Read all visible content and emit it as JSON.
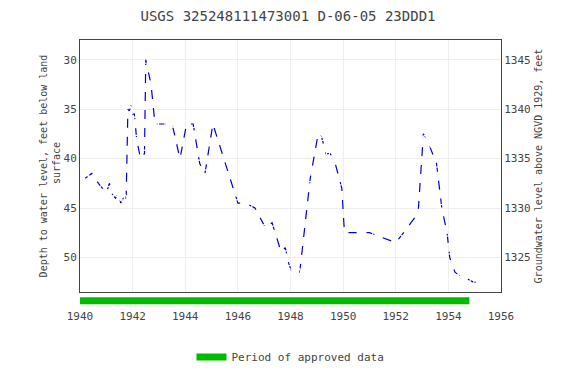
{
  "chart_data": {
    "type": "line",
    "title": "USGS 325248111473001 D-06-05 23DDD1",
    "ylabel": "Depth to water level, feet below land\n surface",
    "y2label": "Groundwater level above NGVD 1929, feet",
    "x": [
      1940.2,
      1940.45,
      1940.7,
      1941.0,
      1941.12,
      1941.2,
      1941.35,
      1941.45,
      1941.55,
      1941.65,
      1941.75,
      1941.82,
      1941.88,
      1941.95,
      1942.0,
      1942.07,
      1942.15,
      1942.3,
      1942.45,
      1942.5,
      1942.7,
      1942.85,
      1943.1,
      1943.5,
      1943.8,
      1944.05,
      1944.3,
      1944.55,
      1944.75,
      1945.05,
      1946.0,
      1946.3,
      1946.65,
      1947.05,
      1947.3,
      1947.65,
      1947.8,
      1947.92,
      1948.05,
      1948.15,
      1948.25,
      1948.35,
      1948.75,
      1949.05,
      1949.15,
      1949.25,
      1949.35,
      1949.5,
      1949.65,
      1949.95,
      1950.05,
      1951.0,
      1952.0,
      1952.3,
      1952.85,
      1953.05,
      1953.15,
      1953.25,
      1953.55,
      1953.75,
      1953.95,
      1954.05,
      1954.25,
      1954.5,
      1954.6,
      1954.95,
      1955.1
    ],
    "values": [
      42.0,
      41.5,
      42.5,
      43.5,
      42.5,
      43.5,
      44.0,
      43.5,
      44.5,
      44.0,
      44.5,
      35.0,
      35.2,
      34.5,
      35.5,
      35.5,
      38.0,
      40.0,
      39.5,
      30.0,
      32.5,
      36.5,
      36.5,
      36.5,
      40.0,
      36.5,
      36.5,
      40.5,
      41.5,
      36.5,
      44.5,
      44.5,
      45.0,
      47.0,
      46.5,
      49.5,
      49.0,
      50.5,
      51.5,
      51.5,
      51.5,
      51.5,
      42.0,
      37.5,
      37.5,
      38.5,
      39.5,
      39.5,
      40.0,
      43.0,
      47.5,
      47.5,
      48.5,
      47.5,
      45.5,
      37.5,
      38.0,
      38.5,
      40.5,
      45.0,
      47.5,
      50.0,
      51.5,
      52.0,
      52.0,
      52.5,
      52.5
    ],
    "color": "#0000cc",
    "marker": "hollow",
    "line_style": "dashed",
    "approved_period": {
      "name": "Period of approved data",
      "color": "#00bb00",
      "x": [
        1940.0,
        1954.8
      ]
    },
    "xlim": [
      1940,
      1956
    ],
    "xticks": [
      1940,
      1942,
      1944,
      1946,
      1948,
      1950,
      1952,
      1954,
      1956
    ],
    "ylim": [
      53.5,
      28.0
    ],
    "yticks": [
      30,
      35,
      40,
      45,
      50
    ],
    "y2lim": [
      1321.5,
      1347.0
    ],
    "y2ticks": [
      1325,
      1330,
      1335,
      1340,
      1345
    ],
    "grid": true,
    "legend": "bottom"
  }
}
